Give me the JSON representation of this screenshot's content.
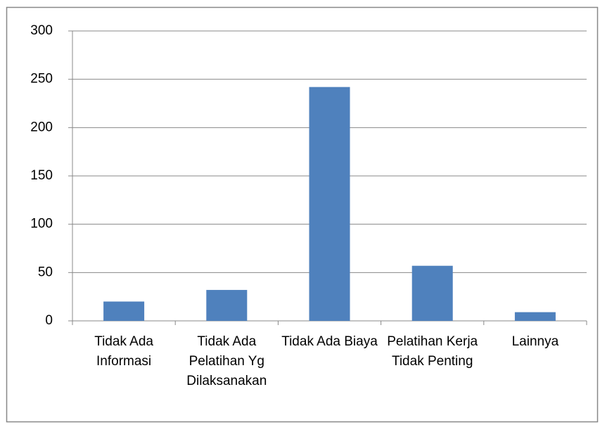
{
  "chart_data": {
    "type": "bar",
    "categories": [
      "Tidak Ada Informasi",
      "Tidak Ada Pelatihan Yg Dilaksanakan",
      "Tidak Ada Biaya",
      "Pelatihan Kerja Tidak Penting",
      "Lainnya"
    ],
    "values": [
      20,
      32,
      242,
      57,
      9
    ],
    "color": "#4f81bd",
    "ylim": [
      0,
      300
    ],
    "yticks": [
      0,
      50,
      100,
      150,
      200,
      250,
      300
    ],
    "grid": true
  }
}
